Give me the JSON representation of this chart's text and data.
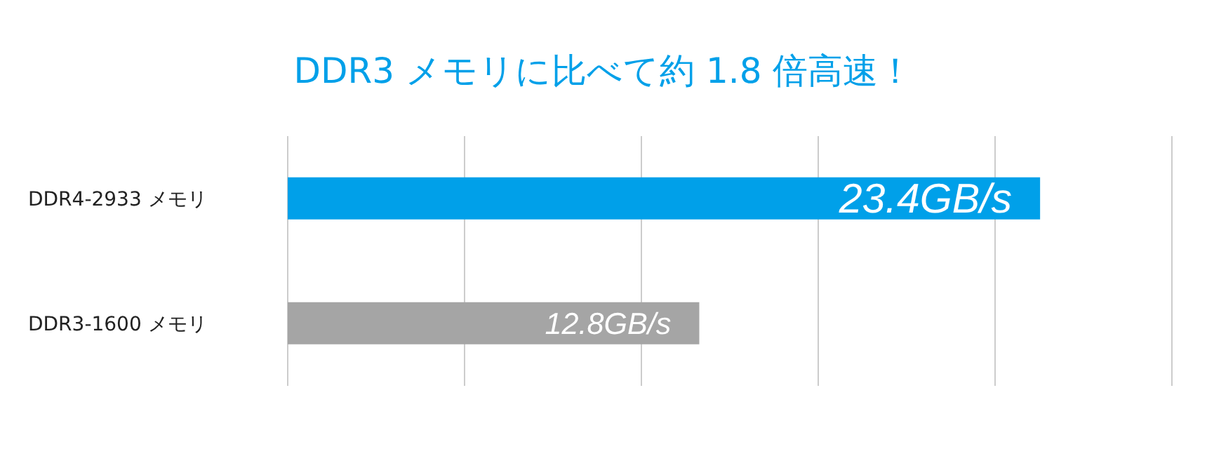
{
  "chart_data": {
    "type": "bar",
    "orientation": "horizontal",
    "title": "DDR3 メモリに比べて約 1.8 倍高速！",
    "categories": [
      "DDR4-2933 メモリ",
      "DDR3-1600 メモリ"
    ],
    "values": [
      23.4,
      12.8
    ],
    "colors": [
      "#00a0e9",
      "#a5a5a5"
    ],
    "value_labels": [
      "23.4GB/s",
      "12.8GB/s"
    ],
    "xlim": [
      0,
      27.5
    ],
    "grid": "x"
  }
}
